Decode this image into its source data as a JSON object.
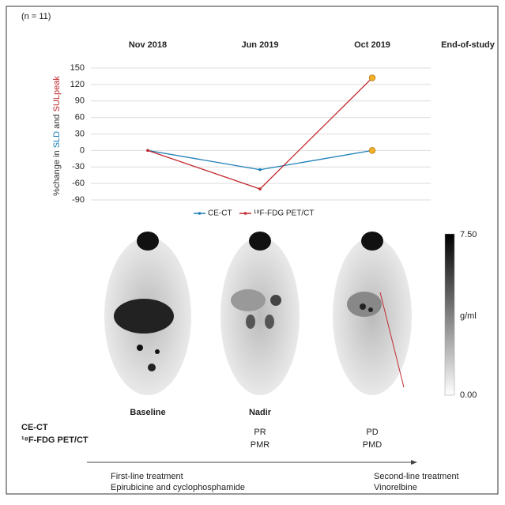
{
  "chart_data": {
    "type": "line",
    "note": "(n = 11)",
    "categories": [
      "Nov 2018",
      "Jun 2019",
      "Oct 2019",
      "End-of-study"
    ],
    "y_label_parts": [
      {
        "text": "%change in ",
        "color": "#333333"
      },
      {
        "text": "SLD",
        "color": "#1b7db8"
      },
      {
        "text": " and ",
        "color": "#333333"
      },
      {
        "text": "SULpeak",
        "color": "#c1272d"
      }
    ],
    "ylim": [
      -90,
      150
    ],
    "yticks": [
      -90,
      -60,
      -30,
      0,
      30,
      60,
      90,
      120,
      150
    ],
    "grid": true,
    "highlight_color": "#f5b02a",
    "series": [
      {
        "name": "CE-CT",
        "color": "#1b7db8",
        "values": [
          0,
          -35,
          0,
          null
        ]
      },
      {
        "name": "¹⁸F-FDG PET/CT",
        "color": "#c1272d",
        "values": [
          0,
          -70,
          132,
          null
        ]
      }
    ],
    "image_labels": [
      "Baseline",
      "Nadir"
    ],
    "colorbar": {
      "max": "7.50",
      "unit": "g/ml",
      "min": "0.00"
    },
    "response": {
      "ct_label": "CE-CT",
      "pet_label": "¹⁸F-FDG PET/CT",
      "nadir": [
        "PR",
        "PMR"
      ],
      "final": [
        "PD",
        "PMD"
      ],
      "nadir_color": "#1aab9b",
      "final_color": "#d0343a"
    },
    "treatments": {
      "first": [
        "First-line treatment",
        "Epirubicine and cyclophosphamide"
      ],
      "second": [
        "Second-line treatment",
        "Vinorelbine"
      ]
    }
  }
}
